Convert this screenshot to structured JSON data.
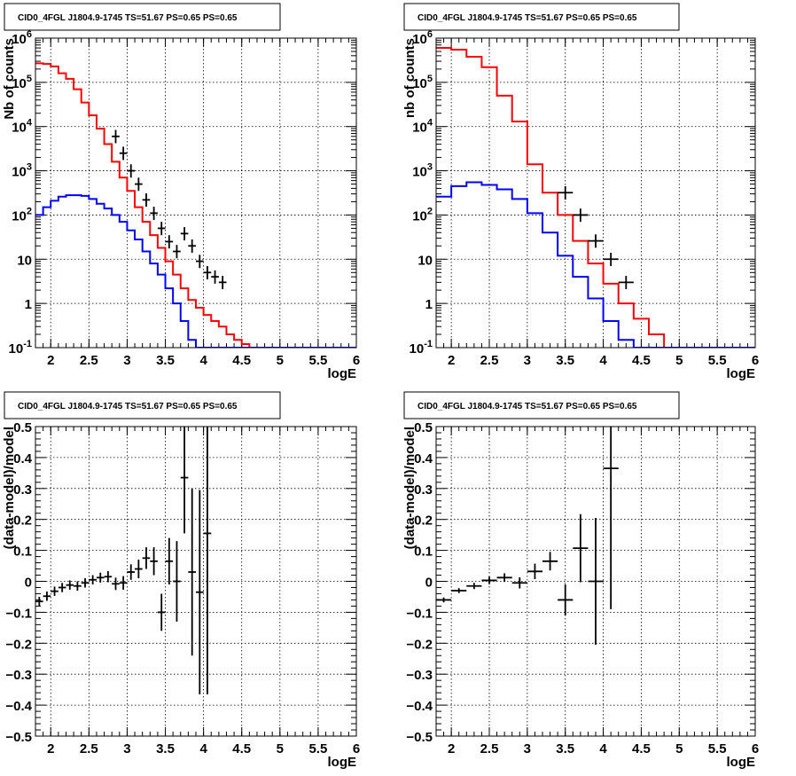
{
  "chart_data": [
    {
      "type": "line",
      "panel": "top-left",
      "title": "CID0_4FGL J1804.9-1745 TS=51.67 PS=0.65 PS=0.65",
      "xlabel": "logE",
      "ylabel": "Nb of counts",
      "xlim": [
        1.8,
        6.0
      ],
      "ylim": [
        0.1,
        1000000
      ],
      "yscale": "log",
      "grid": true,
      "x_ticks": [
        "2",
        "2.5",
        "3",
        "3.5",
        "4",
        "4.5",
        "5",
        "5.5",
        "6"
      ],
      "y_ticks": [
        "10^-1",
        "1",
        "10",
        "10^2",
        "10^3",
        "10^4",
        "10^5",
        "10^6"
      ],
      "bin_edges": [
        1.8,
        1.9,
        2.0,
        2.1,
        2.2,
        2.3,
        2.4,
        2.5,
        2.6,
        2.7,
        2.8,
        2.9,
        3.0,
        3.1,
        3.2,
        3.3,
        3.4,
        3.5,
        3.6,
        3.7,
        3.8,
        3.9,
        4.0,
        4.1,
        4.2,
        4.3,
        4.4,
        4.5,
        4.6,
        4.7,
        4.8,
        4.9,
        5.0
      ],
      "series": [
        {
          "color": "#ff0000",
          "style": "histogram",
          "values": [
            270000,
            260000,
            230000,
            160000,
            120000,
            70000,
            35000,
            18000,
            9000,
            4000,
            1600,
            700,
            350,
            150,
            70,
            35,
            18,
            9,
            4.5,
            2.2,
            1.2,
            0.8,
            0.55,
            0.4,
            0.3,
            0.2,
            0.15,
            0.12,
            0.1,
            0.1,
            0.1,
            0.1
          ]
        },
        {
          "color": "#0000ff",
          "style": "histogram",
          "values": [
            100,
            150,
            210,
            260,
            280,
            280,
            270,
            230,
            180,
            140,
            100,
            70,
            45,
            28,
            15,
            8,
            4.5,
            2.2,
            1.0,
            0.4,
            0.15,
            0.1,
            0.1,
            0.1,
            0.1,
            0.1,
            0.1,
            0.1,
            0.1,
            0.1,
            0.1,
            0.1
          ]
        },
        {
          "color": "#000000",
          "style": "points",
          "x": [
            2.85,
            2.95,
            3.05,
            3.15,
            3.25,
            3.35,
            3.45,
            3.55,
            3.65,
            3.75,
            3.85,
            3.95,
            4.05,
            4.15,
            4.25
          ],
          "y": [
            6000,
            2500,
            1000,
            500,
            220,
            110,
            50,
            25,
            15,
            38,
            20,
            9,
            5,
            4,
            3
          ]
        }
      ]
    },
    {
      "type": "line",
      "panel": "top-right",
      "title": "CID0_4FGL J1804.9-1745 TS=51.67 PS=0.65 PS=0.65",
      "xlabel": "logE",
      "ylabel": "nb of counts",
      "xlim": [
        1.8,
        6.0
      ],
      "ylim": [
        0.1,
        1000000
      ],
      "yscale": "log",
      "grid": true,
      "x_ticks": [
        "2",
        "2.5",
        "3",
        "3.5",
        "4",
        "4.5",
        "5",
        "5.5",
        "6"
      ],
      "y_ticks": [
        "10^-1",
        "1",
        "10",
        "10^2",
        "10^3",
        "10^4",
        "10^5",
        "10^6"
      ],
      "bin_edges": [
        1.8,
        2.0,
        2.2,
        2.4,
        2.6,
        2.8,
        3.0,
        3.2,
        3.4,
        3.6,
        3.8,
        4.0,
        4.2,
        4.4,
        4.6,
        4.8,
        5.0,
        5.2,
        5.4
      ],
      "series": [
        {
          "color": "#ff0000",
          "style": "histogram",
          "values": [
            600000,
            550000,
            380000,
            220000,
            50000,
            13000,
            1400,
            320,
            100,
            26,
            8,
            2.8,
            1.0,
            0.45,
            0.2,
            0.1,
            0.1,
            0.1
          ]
        },
        {
          "color": "#0000ff",
          "style": "histogram",
          "values": [
            260,
            450,
            550,
            480,
            380,
            230,
            110,
            40,
            12,
            4,
            1.3,
            0.4,
            0.15,
            0.1,
            0.1,
            0.1,
            0.1,
            0.1
          ]
        },
        {
          "color": "#000000",
          "style": "points",
          "x": [
            3.5,
            3.7,
            3.9,
            4.1,
            4.3
          ],
          "y": [
            320,
            100,
            26,
            10,
            3
          ]
        }
      ]
    },
    {
      "type": "scatter",
      "panel": "bottom-left",
      "title": "CID0_4FGL J1804.9-1745 TS=51.67 PS=0.65 PS=0.65",
      "xlabel": "logE",
      "ylabel": "(data-model)/model",
      "xlim": [
        1.8,
        6.0
      ],
      "ylim": [
        -0.5,
        0.5
      ],
      "grid": true,
      "x_ticks": [
        "2",
        "2.5",
        "3",
        "3.5",
        "4",
        "4.5",
        "5",
        "5.5",
        "6"
      ],
      "y_ticks": [
        "−0.5",
        "−0.4",
        "−0.3",
        "−0.2",
        "−0.1",
        "0",
        "0.1",
        "0.2",
        "0.3",
        "0.4",
        "0.5"
      ],
      "points": [
        {
          "x": 1.85,
          "y": -0.065,
          "err": 0.015
        },
        {
          "x": 1.95,
          "y": -0.048,
          "err": 0.015
        },
        {
          "x": 2.05,
          "y": -0.032,
          "err": 0.015
        },
        {
          "x": 2.15,
          "y": -0.02,
          "err": 0.015
        },
        {
          "x": 2.25,
          "y": -0.012,
          "err": 0.015
        },
        {
          "x": 2.35,
          "y": -0.015,
          "err": 0.015
        },
        {
          "x": 2.45,
          "y": -0.005,
          "err": 0.015
        },
        {
          "x": 2.55,
          "y": 0.005,
          "err": 0.015
        },
        {
          "x": 2.65,
          "y": 0.012,
          "err": 0.016
        },
        {
          "x": 2.75,
          "y": 0.015,
          "err": 0.018
        },
        {
          "x": 2.85,
          "y": -0.008,
          "err": 0.02
        },
        {
          "x": 2.95,
          "y": -0.005,
          "err": 0.022
        },
        {
          "x": 3.05,
          "y": 0.03,
          "err": 0.025
        },
        {
          "x": 3.15,
          "y": 0.04,
          "err": 0.03
        },
        {
          "x": 3.25,
          "y": 0.075,
          "err": 0.035
        },
        {
          "x": 3.35,
          "y": 0.065,
          "err": 0.045
        },
        {
          "x": 3.45,
          "y": -0.1,
          "err": 0.06
        },
        {
          "x": 3.55,
          "y": 0.065,
          "err": 0.075
        },
        {
          "x": 3.65,
          "y": 0.0,
          "err": 0.13
        },
        {
          "x": 3.75,
          "y": 0.335,
          "err": 0.18
        },
        {
          "x": 3.85,
          "y": 0.03,
          "err": 0.27
        },
        {
          "x": 3.95,
          "y": -0.035,
          "err": 0.33
        },
        {
          "x": 4.05,
          "y": 0.155,
          "err": 0.52
        }
      ]
    },
    {
      "type": "scatter",
      "panel": "bottom-right",
      "title": "CID0_4FGL J1804.9-1745 TS=51.67 PS=0.65 PS=0.65",
      "xlabel": "logE",
      "ylabel": "(data-model)/model",
      "xlim": [
        1.8,
        6.0
      ],
      "ylim": [
        -0.5,
        0.5
      ],
      "grid": true,
      "x_ticks": [
        "2",
        "2.5",
        "3",
        "3.5",
        "4",
        "4.5",
        "5",
        "5.5",
        "6"
      ],
      "y_ticks": [
        "−0.5",
        "−0.4",
        "−0.3",
        "−0.2",
        "−0.1",
        "0",
        "0.1",
        "0.2",
        "0.3",
        "0.4",
        "0.5"
      ],
      "points": [
        {
          "x": 1.9,
          "y": -0.06,
          "err": 0.008
        },
        {
          "x": 2.1,
          "y": -0.03,
          "err": 0.008
        },
        {
          "x": 2.3,
          "y": -0.015,
          "err": 0.01
        },
        {
          "x": 2.5,
          "y": 0.003,
          "err": 0.012
        },
        {
          "x": 2.7,
          "y": 0.012,
          "err": 0.014
        },
        {
          "x": 2.9,
          "y": -0.005,
          "err": 0.018
        },
        {
          "x": 3.1,
          "y": 0.032,
          "err": 0.025
        },
        {
          "x": 3.3,
          "y": 0.065,
          "err": 0.03
        },
        {
          "x": 3.5,
          "y": -0.06,
          "err": 0.05
        },
        {
          "x": 3.7,
          "y": 0.107,
          "err": 0.11
        },
        {
          "x": 3.9,
          "y": 0.0,
          "err": 0.205
        },
        {
          "x": 4.1,
          "y": 0.365,
          "err": 0.455
        }
      ]
    }
  ]
}
